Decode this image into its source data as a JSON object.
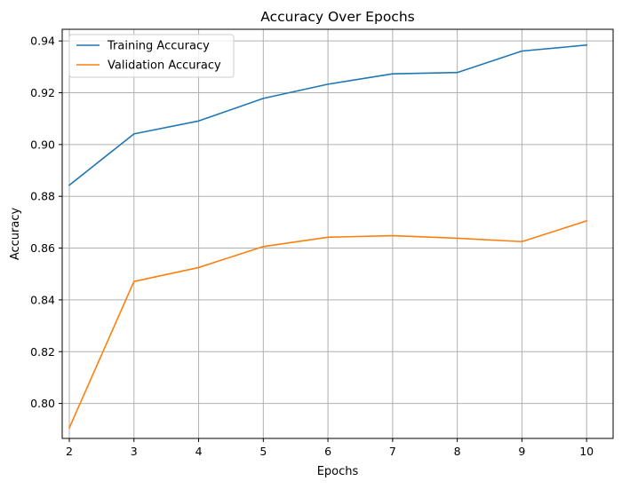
{
  "chart_data": {
    "type": "line",
    "title": "Accuracy Over Epochs",
    "xlabel": "Epochs",
    "ylabel": "Accuracy",
    "x": [
      2,
      3,
      4,
      5,
      6,
      7,
      8,
      9,
      10
    ],
    "xlim": [
      1.89,
      10.41
    ],
    "ylim": [
      0.7865,
      0.9445
    ],
    "xticks": [
      2,
      3,
      4,
      5,
      6,
      7,
      8,
      9,
      10
    ],
    "yticks": [
      0.8,
      0.82,
      0.84,
      0.86,
      0.88,
      0.9,
      0.92,
      0.94
    ],
    "xtick_labels": [
      "2",
      "3",
      "4",
      "5",
      "6",
      "7",
      "8",
      "9",
      "10"
    ],
    "ytick_labels": [
      "0.80",
      "0.82",
      "0.84",
      "0.86",
      "0.88",
      "0.90",
      "0.92",
      "0.94"
    ],
    "grid": true,
    "legend_position": "top-left",
    "series": [
      {
        "name": "Training Accuracy",
        "color": "#1f77b4",
        "values": [
          0.8843,
          0.9041,
          0.9091,
          0.9178,
          0.9233,
          0.9273,
          0.9278,
          0.9361,
          0.9384
        ]
      },
      {
        "name": "Validation Accuracy",
        "color": "#ff7f0e",
        "values": [
          0.7906,
          0.8471,
          0.8525,
          0.8606,
          0.8642,
          0.8648,
          0.8638,
          0.8625,
          0.8705
        ]
      }
    ]
  }
}
